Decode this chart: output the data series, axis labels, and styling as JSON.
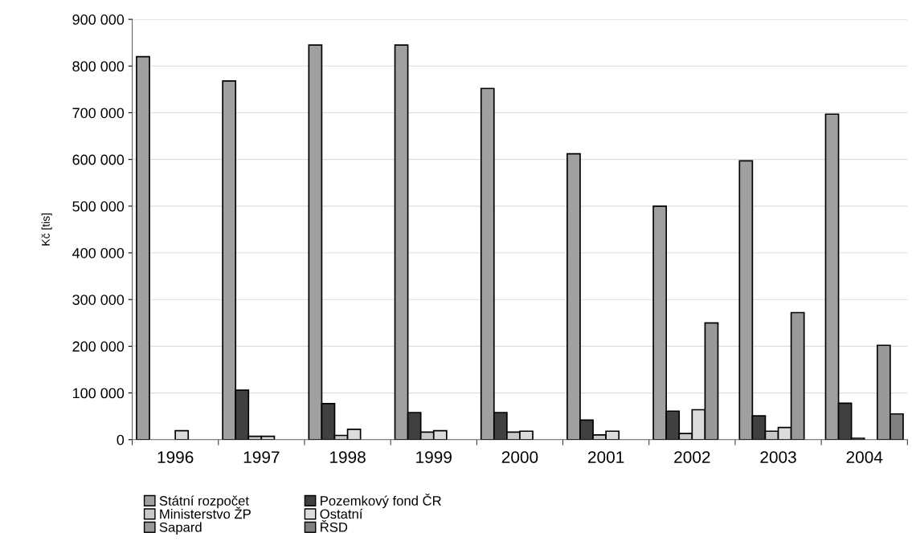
{
  "chart_data": {
    "type": "bar",
    "ylabel": "Kč [tis]",
    "categories": [
      "1996",
      "1997",
      "1998",
      "1999",
      "2000",
      "2001",
      "2002",
      "2003",
      "2004"
    ],
    "series": [
      {
        "name": "Státní rozpočet",
        "color": "#a0a0a0",
        "values": [
          820000,
          768000,
          845000,
          845000,
          752000,
          612000,
          500000,
          597000,
          697000
        ]
      },
      {
        "name": "Pozemkový fond ČR",
        "color": "#404040",
        "values": [
          null,
          106000,
          77000,
          58000,
          58000,
          42000,
          61000,
          51000,
          78000
        ]
      },
      {
        "name": "Ministerstvo ŽP",
        "color": "#c8c8c8",
        "values": [
          null,
          7000,
          9000,
          16000,
          16000,
          10000,
          13000,
          18000,
          3000
        ]
      },
      {
        "name": "Ostatní",
        "color": "#dcdcdc",
        "values": [
          19000,
          7000,
          22000,
          19000,
          18000,
          18000,
          64000,
          26000,
          null
        ]
      },
      {
        "name": "Sapard",
        "color": "#999999",
        "values": [
          null,
          null,
          null,
          null,
          null,
          null,
          250000,
          272000,
          202000
        ]
      },
      {
        "name": "ŘSD",
        "color": "#808080",
        "values": [
          null,
          null,
          null,
          null,
          null,
          null,
          null,
          null,
          55000
        ]
      }
    ],
    "ylim": [
      0,
      900000
    ],
    "yticks": [
      {
        "value": 0,
        "label": "0"
      },
      {
        "value": 100000,
        "label": "100 000"
      },
      {
        "value": 200000,
        "label": "200 000"
      },
      {
        "value": 300000,
        "label": "300 000"
      },
      {
        "value": 400000,
        "label": "400 000"
      },
      {
        "value": 500000,
        "label": "500 000"
      },
      {
        "value": 600000,
        "label": "600 000"
      },
      {
        "value": 700000,
        "label": "700 000"
      },
      {
        "value": 800000,
        "label": "800 000"
      },
      {
        "value": 900000,
        "label": "900 000"
      }
    ],
    "grid": "y",
    "legend": "bottom"
  }
}
